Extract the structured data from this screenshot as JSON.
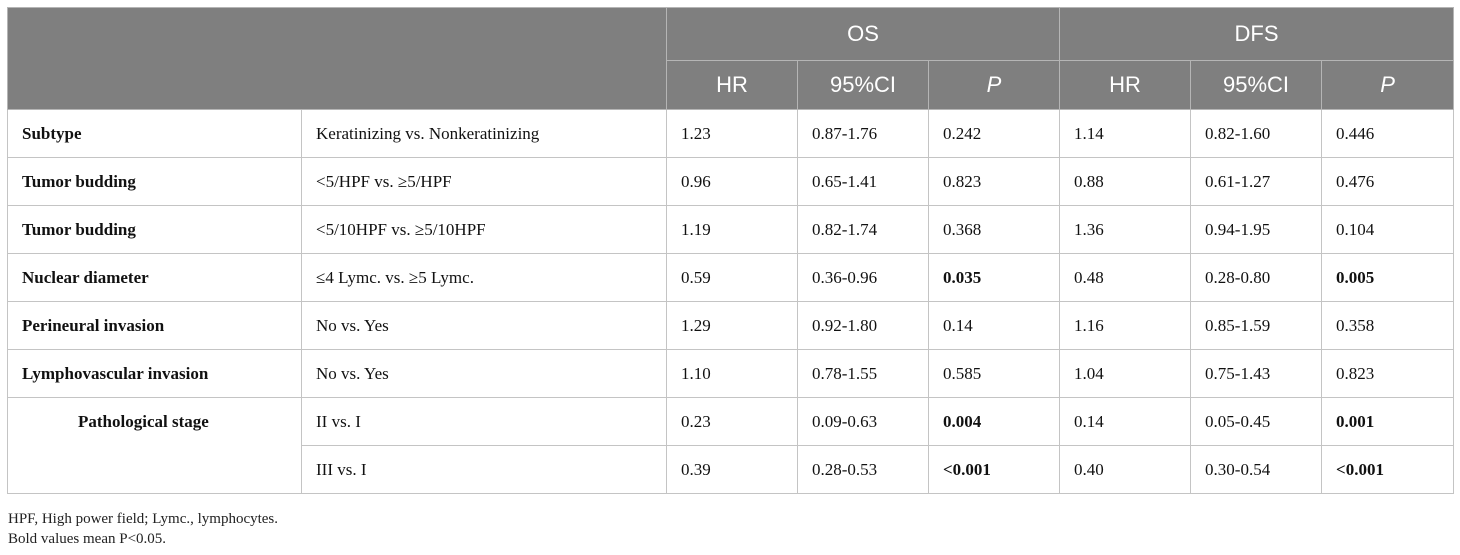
{
  "header": {
    "groups": [
      "OS",
      "DFS"
    ],
    "columns": [
      "HR",
      "95%CI",
      "P",
      "HR",
      "95%CI",
      "P"
    ]
  },
  "rows": [
    {
      "variable": "Subtype",
      "comparison": "Keratinizing vs. Nonkeratinizing",
      "os_hr": "1.23",
      "os_ci": "0.87-1.76",
      "os_p": "0.242",
      "dfs_hr": "1.14",
      "dfs_ci": "0.82-1.60",
      "dfs_p": "0.446"
    },
    {
      "variable": "Tumor budding",
      "comparison": "<5/HPF vs. ≥5/HPF",
      "os_hr": "0.96",
      "os_ci": "0.65-1.41",
      "os_p": "0.823",
      "dfs_hr": "0.88",
      "dfs_ci": "0.61-1.27",
      "dfs_p": "0.476"
    },
    {
      "variable": "Tumor budding",
      "comparison": "<5/10HPF vs. ≥5/10HPF",
      "os_hr": "1.19",
      "os_ci": "0.82-1.74",
      "os_p": "0.368",
      "dfs_hr": "1.36",
      "dfs_ci": "0.94-1.95",
      "dfs_p": "0.104"
    },
    {
      "variable": "Nuclear diameter",
      "comparison": "≤4 Lymc. vs. ≥5 Lymc.",
      "os_hr": "0.59",
      "os_ci": "0.36-0.96",
      "os_p": "0.035",
      "dfs_hr": "0.48",
      "dfs_ci": "0.28-0.80",
      "dfs_p": "0.005"
    },
    {
      "variable": "Perineural invasion",
      "comparison": "No vs. Yes",
      "os_hr": "1.29",
      "os_ci": "0.92-1.80",
      "os_p": "0.14",
      "dfs_hr": "1.16",
      "dfs_ci": "0.85-1.59",
      "dfs_p": "0.358"
    },
    {
      "variable": "Lymphovascular invasion",
      "comparison": "No vs. Yes",
      "os_hr": "1.10",
      "os_ci": "0.78-1.55",
      "os_p": "0.585",
      "dfs_hr": "1.04",
      "dfs_ci": "0.75-1.43",
      "dfs_p": "0.823"
    },
    {
      "variable": "Pathological stage",
      "comparison": "II vs. I",
      "os_hr": "0.23",
      "os_ci": "0.09-0.63",
      "os_p": "0.004",
      "dfs_hr": "0.14",
      "dfs_ci": "0.05-0.45",
      "dfs_p": "0.001"
    },
    {
      "variable": "",
      "comparison": "III vs. I",
      "os_hr": "0.39",
      "os_ci": "0.28-0.53",
      "os_p": "<0.001",
      "dfs_hr": "0.40",
      "dfs_ci": "0.30-0.54",
      "dfs_p": "<0.001"
    }
  ],
  "footnotes": [
    "HPF, High power field; Lymc., lymphocytes.",
    "Bold values mean P<0.05."
  ]
}
